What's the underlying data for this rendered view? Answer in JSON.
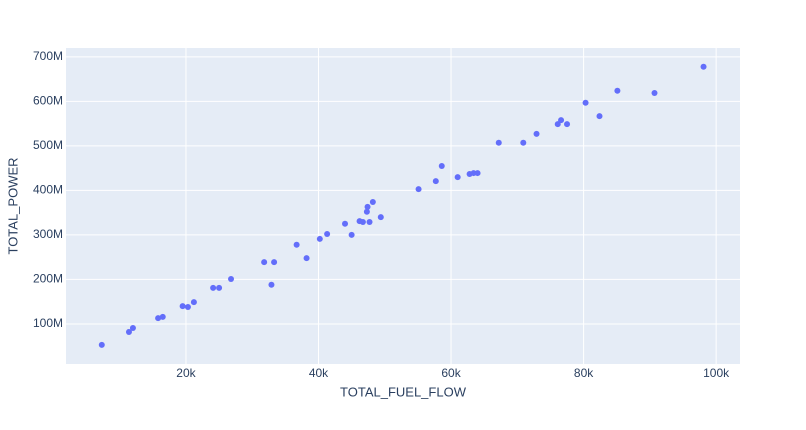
{
  "chart_data": {
    "type": "scatter",
    "x_label": "TOTAL_FUEL_FLOW",
    "y_label": "TOTAL_POWER",
    "color": "#636efa",
    "plot_bgcolor": "#e5ecf6",
    "grid": true,
    "xlim": [
      1900,
      103600
    ],
    "ylim": [
      10000000,
      720000000
    ],
    "xticks": [
      {
        "value": 20000,
        "label": "20k"
      },
      {
        "value": 40000,
        "label": "40k"
      },
      {
        "value": 60000,
        "label": "60k"
      },
      {
        "value": 80000,
        "label": "80k"
      },
      {
        "value": 100000,
        "label": "100k"
      }
    ],
    "yticks": [
      {
        "value": 100000000,
        "label": "100M"
      },
      {
        "value": 200000000,
        "label": "200M"
      },
      {
        "value": 300000000,
        "label": "300M"
      },
      {
        "value": 400000000,
        "label": "400M"
      },
      {
        "value": 500000000,
        "label": "500M"
      },
      {
        "value": 600000000,
        "label": "600M"
      },
      {
        "value": 700000000,
        "label": "700M"
      }
    ],
    "x": [
      7300,
      11400,
      12000,
      15800,
      16500,
      19500,
      20300,
      21200,
      24100,
      25000,
      26800,
      31800,
      33300,
      32900,
      36700,
      38200,
      40200,
      41300,
      44000,
      45000,
      46200,
      46700,
      47300,
      47400,
      47700,
      48200,
      49400,
      55100,
      57700,
      58600,
      61000,
      62800,
      63400,
      64000,
      67200,
      70900,
      72900,
      76100,
      76600,
      77500,
      80300,
      82400,
      85100,
      90700,
      98100
    ],
    "y": [
      53000000,
      82000000,
      91000000,
      113000000,
      116000000,
      140000000,
      138000000,
      149000000,
      181000000,
      181000000,
      201000000,
      239000000,
      239000000,
      188000000,
      278000000,
      248000000,
      291000000,
      302000000,
      325000000,
      300000000,
      331000000,
      329000000,
      352000000,
      363000000,
      329000000,
      374000000,
      340000000,
      403000000,
      421000000,
      455000000,
      430000000,
      437000000,
      439000000,
      439000000,
      507000000,
      507000000,
      527000000,
      549000000,
      558000000,
      549000000,
      597000000,
      567000000,
      624000000,
      619000000,
      678000000
    ]
  }
}
